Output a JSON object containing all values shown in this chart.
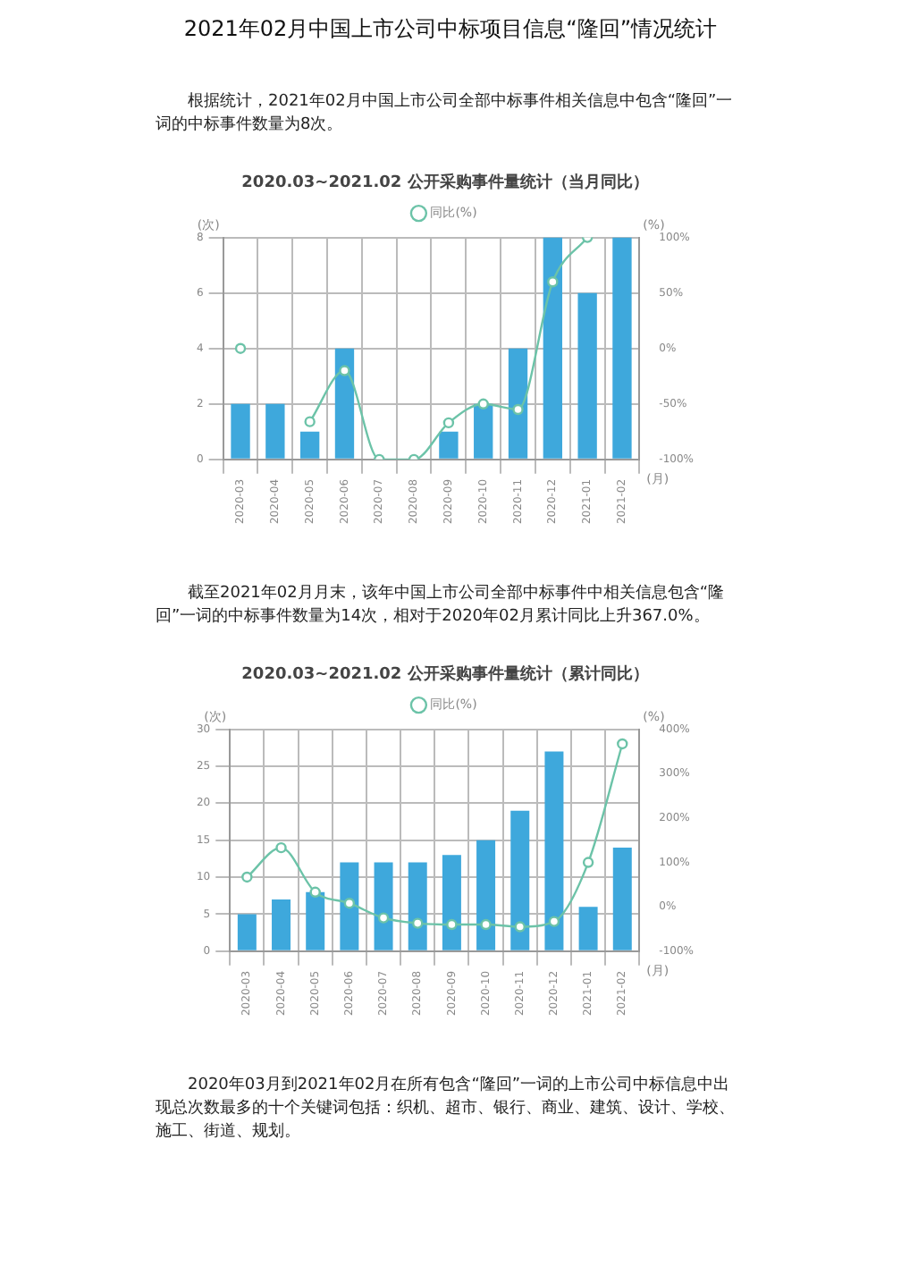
{
  "chart_data": [
    {
      "type": "bar",
      "title": "2020.03~2021.02 公开采购事件量统计（当月同比）",
      "ylabel": "(次)",
      "y2label": "(%)",
      "xlabel": "(月)",
      "annotations": [
        "2021年02月中国上市公司中标项目信息“隆回”情况统计",
        "根据统计，2021年02月中国上市公司全部中标事件相关信息中包含“隆回”一词的中标事件数量为8次。"
      ],
      "categories": [
        "2020-03",
        "2020-04",
        "2020-05",
        "2020-06",
        "2020-07",
        "2020-08",
        "2020-09",
        "2020-10",
        "2020-11",
        "2020-12",
        "2021-01",
        "2021-02"
      ],
      "series": [
        {
          "color": "#3ea8dc",
          "values": [
            2,
            2,
            1,
            4,
            0,
            0,
            1,
            2,
            4,
            8,
            6,
            8
          ]
        },
        {
          "type": "line",
          "name": "同比(%)",
          "axis": "y2",
          "color": "#6cc3a8",
          "values": [
            0,
            null,
            -66,
            -20,
            -100,
            -100,
            -67,
            -50,
            -55,
            60,
            100,
            null
          ]
        }
      ],
      "ylim": [
        0,
        8
      ],
      "yticks": [
        0,
        2,
        4,
        6,
        8
      ],
      "y2lim": [
        -100,
        100
      ],
      "y2ticks": [
        {
          "value": -100,
          "label": "-100%"
        },
        {
          "value": -50,
          "label": "-50%"
        },
        {
          "value": 0,
          "label": "0%"
        },
        {
          "value": 50,
          "label": "50%"
        },
        {
          "value": 100,
          "label": "100%"
        }
      ],
      "grid": true,
      "legend": "top",
      "marker": "circle"
    },
    {
      "type": "bar",
      "title": "2020.03~2021.02 公开采购事件量统计（累计同比）",
      "ylabel": "(次)",
      "y2label": "(%)",
      "xlabel": "(月)",
      "annotations": [
        "截至2021年02月月末，该年中国上市公司全部中标事件中相关信息包含“隆回”一词的中标事件数量为14次，相对于2020年02月累计同比上升367.0%。",
        "2020年03月到2021年02月在所有包含“隆回”一词的上市公司中标信息中出现总次数最多的十个关键词包括：织机、超市、银行、商业、建筑、设计、学校、施工、街道、规划。"
      ],
      "categories": [
        "2020-03",
        "2020-04",
        "2020-05",
        "2020-06",
        "2020-07",
        "2020-08",
        "2020-09",
        "2020-10",
        "2020-11",
        "2020-12",
        "2021-01",
        "2021-02"
      ],
      "series": [
        {
          "color": "#3ea8dc",
          "values": [
            5,
            7,
            8,
            12,
            12,
            12,
            13,
            15,
            19,
            27,
            6,
            14
          ]
        },
        {
          "type": "line",
          "name": "同比(%)",
          "axis": "y2",
          "color": "#6cc3a8",
          "values": [
            67,
            133,
            33,
            8,
            -25,
            -37,
            -40,
            -40,
            -45,
            -33,
            100,
            367
          ]
        }
      ],
      "ylim": [
        0,
        30
      ],
      "yticks": [
        0,
        5,
        10,
        15,
        20,
        25,
        30
      ],
      "y2lim": [
        -100,
        400
      ],
      "y2ticks": [
        {
          "value": -100,
          "label": "-100%"
        },
        {
          "value": 0,
          "label": "0%"
        },
        {
          "value": 100,
          "label": "100%"
        },
        {
          "value": 200,
          "label": "200%"
        },
        {
          "value": 300,
          "label": "300%"
        },
        {
          "value": 400,
          "label": "400%"
        }
      ],
      "grid": true,
      "legend": "top",
      "marker": "circle"
    }
  ]
}
